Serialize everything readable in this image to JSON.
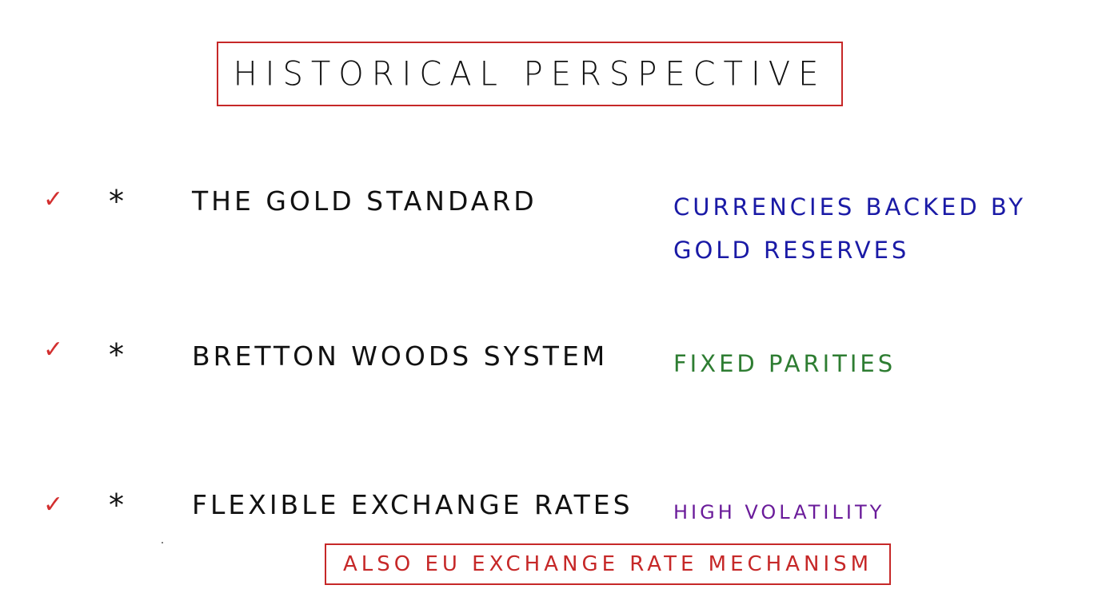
{
  "title": "HISTORICAL PERSPECTIVE",
  "items": [
    {
      "check": "✓",
      "bullet": "*",
      "label": "THE GOLD STANDARD",
      "note_lines": [
        "CURRENCIES BACKED BY",
        "GOLD RESERVES"
      ],
      "note_color": "#1a1aa6"
    },
    {
      "check": "✓",
      "bullet": "*",
      "label": "BRETTON WOODS SYSTEM",
      "note_lines": [
        "FIXED PARITIES"
      ],
      "note_color": "#2e7d32"
    },
    {
      "check": "✓",
      "bullet": "*",
      "label": "FLEXIBLE EXCHANGE RATES",
      "note_lines": [
        "HIGH VOLATILITY"
      ],
      "note_color": "#6a1b9a"
    }
  ],
  "footer_note": "ALSO EU EXCHANGE RATE MECHANISM",
  "accent_color": "#c62828"
}
